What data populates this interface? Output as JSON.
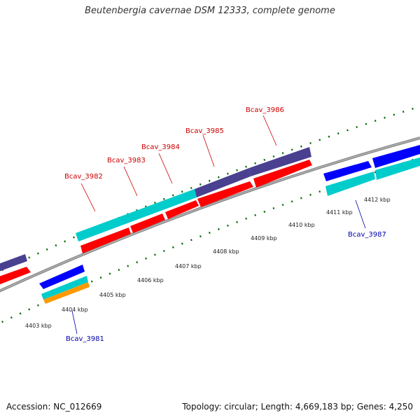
{
  "title": "Beutenbergia cavernae DSM 12333, complete genome",
  "accession": "Accession: NC_012669",
  "summary": "Topology: circular; Length: 4,669,183 bp; Genes: 4,250",
  "scale_labels": [
    "4403 kbp",
    "4404 kbp",
    "4405 kbp",
    "4406 kbp",
    "4407 kbp",
    "4408 kbp",
    "4409 kbp",
    "4410 kbp",
    "4411 kbp",
    "4412 kbp"
  ],
  "gene_labels": {
    "bcav_3981": "Bcav_3981",
    "bcav_3982": "Bcav_3982",
    "bcav_3983": "Bcav_3983",
    "bcav_3984": "Bcav_3984",
    "bcav_3985": "Bcav_3985",
    "bcav_3986": "Bcav_3986",
    "bcav_3987": "Bcav_3987"
  },
  "colors": {
    "cds_forward": "#ff0000",
    "cds_reverse": "#0000ff",
    "gene_cyan": "#00cccc",
    "gene_purple": "#4a4090",
    "orange": "#ff9900",
    "backbone": "#888888",
    "tick": "#006600",
    "label_forward": "#cc0000",
    "label_reverse": "#0000aa"
  }
}
